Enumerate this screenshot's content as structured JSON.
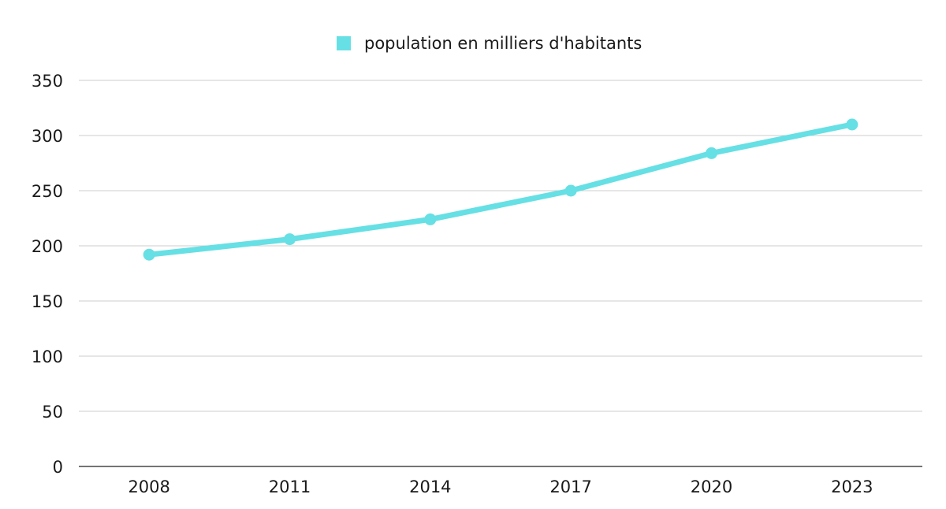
{
  "chart_data": {
    "type": "line",
    "categories": [
      "2008",
      "2011",
      "2014",
      "2017",
      "2020",
      "2023"
    ],
    "series": [
      {
        "name": "population en milliers d'habitants",
        "values": [
          192,
          206,
          224,
          250,
          284,
          310
        ],
        "color": "#66e0e4"
      }
    ],
    "ylim": [
      0,
      350
    ],
    "yticks": [
      0,
      50,
      100,
      150,
      200,
      250,
      300,
      350
    ],
    "grid": true,
    "legend_position": "top-center",
    "gridline_color": "#cccccc",
    "axis_color": "#222222"
  }
}
